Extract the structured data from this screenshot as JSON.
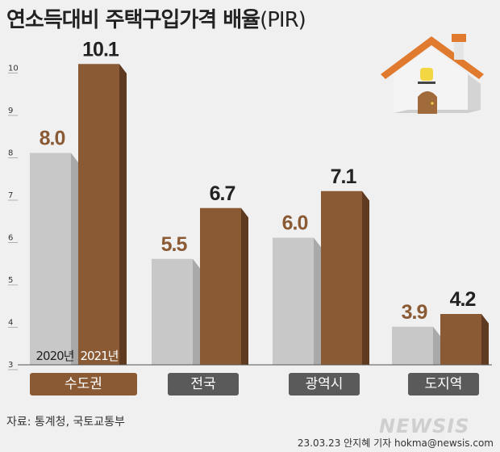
{
  "title": {
    "main": "연소득대비 주택구입가격 배율",
    "sub": "(PIR)"
  },
  "chart_data": {
    "type": "bar",
    "categories": [
      "수도권",
      "전국",
      "광역시",
      "도지역"
    ],
    "series": [
      {
        "name": "2020년",
        "values": [
          8.0,
          5.5,
          6.0,
          3.9
        ],
        "labels": [
          "8.0",
          "5.5",
          "6.0",
          "3.9"
        ]
      },
      {
        "name": "2021년",
        "values": [
          10.1,
          6.7,
          7.1,
          4.2
        ],
        "labels": [
          "10.1",
          "6.7",
          "7.1",
          "4.2"
        ]
      }
    ],
    "ylim": [
      3,
      10
    ],
    "yticks": [
      "3",
      "4",
      "5",
      "6",
      "7",
      "8",
      "9",
      "10"
    ],
    "colors": {
      "2020": "#c8c8c8",
      "2020_side": "#a9a9a9",
      "2021": "#8a5a35",
      "2021_side": "#5e3b20",
      "label_2020": "#8a5a35",
      "label_2021": "#222222",
      "highlight_category": "#8a5a35",
      "category": "#5a5a5a"
    },
    "legend_inline": [
      "2020년",
      "2021년"
    ]
  },
  "source": "자료: 통계청, 국토교통부",
  "logo": "NEWSIS",
  "credit": "23.03.23 안지혜 기자 hokma@newsis.com"
}
